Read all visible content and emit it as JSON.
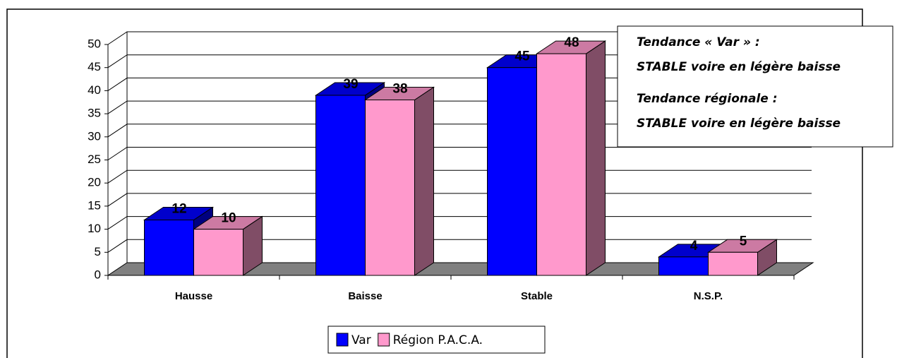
{
  "chart_data": {
    "type": "bar3d",
    "categories": [
      "Hausse",
      "Baisse",
      "Stable",
      "N.S.P."
    ],
    "series": [
      {
        "name": "Var",
        "color": "#0000ff",
        "values": [
          12,
          39,
          45,
          4
        ]
      },
      {
        "name": "Région P.A.C.A.",
        "color": "#ff99cc",
        "values": [
          10,
          38,
          48,
          5
        ]
      }
    ],
    "ylim": [
      0,
      50
    ],
    "yticks": [
      0,
      5,
      10,
      15,
      20,
      25,
      30,
      35,
      40,
      45,
      50
    ],
    "grid": true,
    "legend": "bottom",
    "annotations": [
      "Tendance « Var » :",
      "STABLE voire en légère baisse",
      "Tendance régionale :",
      "STABLE voire en légère baisse"
    ]
  }
}
